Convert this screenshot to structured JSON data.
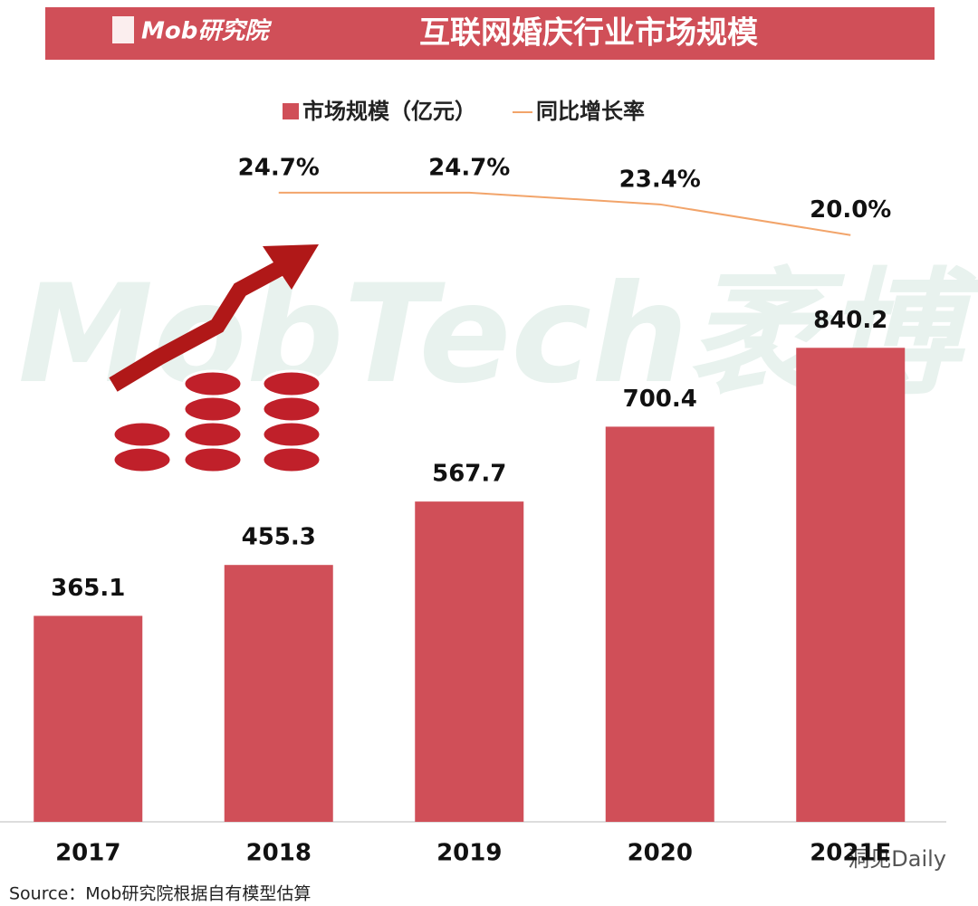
{
  "chart_data": {
    "type": "bar",
    "brand": "Mob研究院",
    "title": "互联网婚庆行业市场规模",
    "categories": [
      "2017",
      "2018",
      "2019",
      "2020",
      "2021E"
    ],
    "series": [
      {
        "name": "市场规模（亿元）",
        "color": "#d04f58",
        "type": "bar",
        "values": [
          365.1,
          455.3,
          567.7,
          700.4,
          840.2
        ]
      },
      {
        "name": "同比增长率",
        "color": "#f2a46a",
        "type": "line",
        "axis": "y2",
        "values": [
          null,
          24.7,
          24.7,
          23.4,
          20.0
        ],
        "value_labels": [
          null,
          "24.7%",
          "24.7%",
          "23.4%",
          "20.0%"
        ]
      }
    ],
    "ylim": [
      0,
      1200
    ],
    "y2lim": [
      -45,
      30
    ],
    "watermark": "MobTech袤博",
    "source": "Source：Mob研究院根据自有模型估算",
    "corner_mark": "洞见Daily"
  }
}
